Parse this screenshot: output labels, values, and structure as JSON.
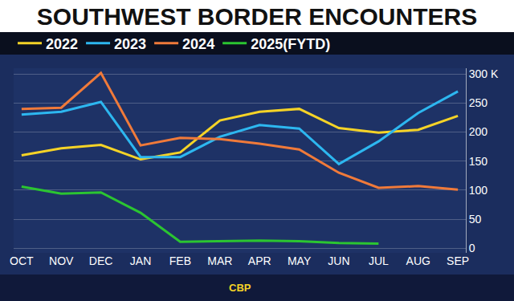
{
  "chart_data": {
    "type": "line",
    "title": "SOUTHWEST BORDER ENCOUNTERS",
    "source": "CBP",
    "categories": [
      "OCT",
      "NOV",
      "DEC",
      "JAN",
      "FEB",
      "MAR",
      "APR",
      "MAY",
      "JUN",
      "JUL",
      "AUG",
      "SEP"
    ],
    "series": [
      {
        "name": "2022",
        "color": "#f5d327",
        "values": [
          160,
          172,
          178,
          153,
          165,
          220,
          235,
          240,
          207,
          199,
          204,
          228
        ]
      },
      {
        "name": "2023",
        "color": "#2db7f0",
        "values": [
          230,
          235,
          252,
          157,
          157,
          192,
          212,
          206,
          145,
          184,
          233,
          270
        ]
      },
      {
        "name": "2024",
        "color": "#f07a3a",
        "values": [
          240,
          242,
          302,
          177,
          190,
          188,
          180,
          170,
          130,
          104,
          107,
          101
        ]
      },
      {
        "name": "2025(FYTD)",
        "color": "#2bc531",
        "values": [
          106,
          94,
          96,
          61,
          11,
          12,
          13,
          12,
          9,
          8,
          null,
          null
        ]
      }
    ],
    "ylim": [
      -8,
      310
    ],
    "yticks": [
      0,
      50,
      100,
      150,
      200,
      250,
      {
        "value": 300,
        "label": "300 K"
      }
    ],
    "grid": true,
    "legend": "top"
  }
}
